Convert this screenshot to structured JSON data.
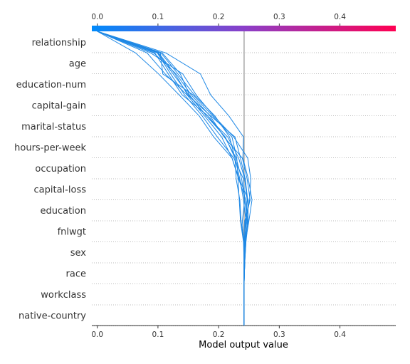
{
  "chart_data": {
    "type": "line",
    "title": "",
    "xlabel": "Model output value",
    "ylabel": "",
    "xlim": [
      -0.009,
      0.492
    ],
    "xticks": [
      "0.0",
      "0.1",
      "0.2",
      "0.3",
      "0.4"
    ],
    "xtick_values": [
      0.0,
      0.1,
      0.2,
      0.3,
      0.4
    ],
    "base_value": 0.242,
    "features": [
      "relationship",
      "age",
      "education-num",
      "capital-gain",
      "marital-status",
      "hours-per-week",
      "occupation",
      "capital-loss",
      "education",
      "fnlwgt",
      "sex",
      "race",
      "workclass",
      "native-country"
    ],
    "colorbar": {
      "low_color": "#008bfb",
      "mid_color": "#8a3fc9",
      "high_color": "#ff0052"
    },
    "line_color": "#1e88e5",
    "grid": "dotted horizontal",
    "series": [
      {
        "values": [
          0.0,
          0.104,
          0.108,
          0.158,
          0.19,
          0.222,
          0.23,
          0.232,
          0.234,
          0.236,
          0.241,
          0.242,
          0.242,
          0.242,
          0.242
        ]
      },
      {
        "values": [
          0.0,
          0.1,
          0.125,
          0.151,
          0.18,
          0.211,
          0.227,
          0.235,
          0.241,
          0.245,
          0.242,
          0.242,
          0.242,
          0.242,
          0.242
        ]
      },
      {
        "values": [
          0.0,
          0.088,
          0.141,
          0.163,
          0.192,
          0.225,
          0.248,
          0.253,
          0.251,
          0.245,
          0.244,
          0.243,
          0.242,
          0.242,
          0.242
        ]
      },
      {
        "values": [
          0.0,
          0.095,
          0.117,
          0.14,
          0.183,
          0.21,
          0.229,
          0.238,
          0.243,
          0.247,
          0.245,
          0.243,
          0.242,
          0.242,
          0.242
        ]
      },
      {
        "values": [
          0.0,
          0.082,
          0.112,
          0.148,
          0.177,
          0.205,
          0.222,
          0.233,
          0.245,
          0.248,
          0.244,
          0.242,
          0.242,
          0.242,
          0.242
        ]
      },
      {
        "values": [
          0.0,
          0.107,
          0.137,
          0.152,
          0.18,
          0.215,
          0.233,
          0.243,
          0.247,
          0.244,
          0.243,
          0.242,
          0.242,
          0.242,
          0.242
        ]
      },
      {
        "values": [
          0.0,
          0.063,
          0.101,
          0.135,
          0.168,
          0.192,
          0.222,
          0.234,
          0.249,
          0.246,
          0.242,
          0.242,
          0.242,
          0.242,
          0.242
        ]
      },
      {
        "values": [
          0.0,
          0.093,
          0.13,
          0.155,
          0.186,
          0.209,
          0.239,
          0.247,
          0.252,
          0.243,
          0.243,
          0.242,
          0.242,
          0.242,
          0.242
        ]
      },
      {
        "values": [
          0.0,
          0.113,
          0.17,
          0.187,
          0.217,
          0.241,
          0.24,
          0.249,
          0.255,
          0.25,
          0.244,
          0.243,
          0.242,
          0.242,
          0.242
        ]
      },
      {
        "values": [
          0.0,
          0.099,
          0.121,
          0.144,
          0.173,
          0.198,
          0.225,
          0.241,
          0.243,
          0.239,
          0.242,
          0.242,
          0.242,
          0.242,
          0.242
        ]
      },
      {
        "values": [
          0.0,
          0.105,
          0.133,
          0.16,
          0.194,
          0.218,
          0.227,
          0.229,
          0.235,
          0.237,
          0.242,
          0.243,
          0.242,
          0.242,
          0.242
        ]
      },
      {
        "values": [
          0.0,
          0.101,
          0.128,
          0.149,
          0.187,
          0.227,
          0.236,
          0.244,
          0.248,
          0.249,
          0.245,
          0.243,
          0.242,
          0.242,
          0.242
        ]
      }
    ]
  }
}
